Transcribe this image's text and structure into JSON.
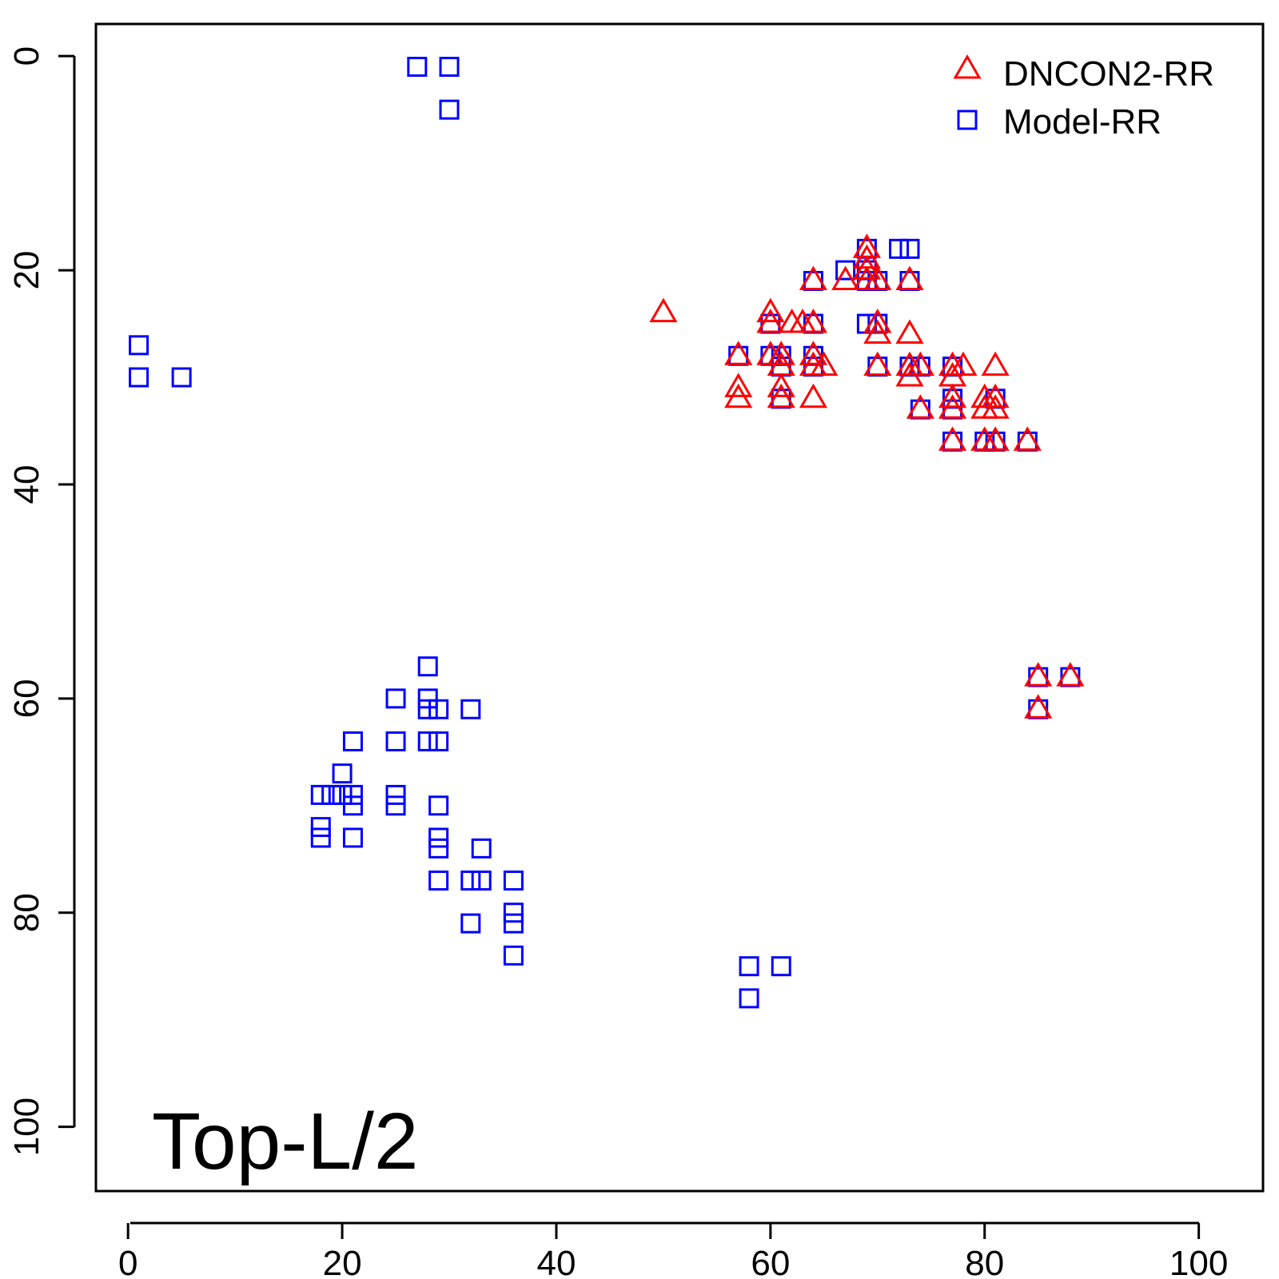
{
  "chart_data": {
    "type": "scatter",
    "annotation": "Top-L/2",
    "xlim": [
      -3,
      106
    ],
    "ylim": [
      -3,
      106
    ],
    "y_reversed": true,
    "x_ticks": [
      0,
      20,
      40,
      60,
      80,
      100
    ],
    "y_ticks": [
      0,
      20,
      40,
      60,
      80,
      100
    ],
    "legend": {
      "position": "top-right"
    },
    "series": [
      {
        "name": "DNCON2-RR",
        "marker": "triangle",
        "color": "#ff0000",
        "points": [
          [
            50,
            24
          ],
          [
            60,
            24
          ],
          [
            60,
            25
          ],
          [
            62,
            25
          ],
          [
            63,
            25
          ],
          [
            64,
            25
          ],
          [
            57,
            28
          ],
          [
            60,
            28
          ],
          [
            61,
            28
          ],
          [
            64,
            28
          ],
          [
            65,
            29
          ],
          [
            61,
            29
          ],
          [
            64,
            29
          ],
          [
            57,
            31
          ],
          [
            57,
            32
          ],
          [
            61,
            31
          ],
          [
            61,
            32
          ],
          [
            64,
            32
          ],
          [
            64,
            21
          ],
          [
            67,
            21
          ],
          [
            69,
            18
          ],
          [
            69,
            19
          ],
          [
            69,
            20
          ],
          [
            69,
            21
          ],
          [
            70,
            21
          ],
          [
            70,
            25
          ],
          [
            70,
            26
          ],
          [
            70,
            29
          ],
          [
            73,
            21
          ],
          [
            73,
            26
          ],
          [
            73,
            29
          ],
          [
            73,
            30
          ],
          [
            74,
            29
          ],
          [
            74,
            33
          ],
          [
            77,
            29
          ],
          [
            77,
            30
          ],
          [
            77,
            32
          ],
          [
            77,
            33
          ],
          [
            78,
            29
          ],
          [
            77,
            36
          ],
          [
            80,
            32
          ],
          [
            80,
            33
          ],
          [
            81,
            29
          ],
          [
            81,
            32
          ],
          [
            81,
            33
          ],
          [
            80,
            36
          ],
          [
            81,
            36
          ],
          [
            84,
            36
          ],
          [
            85,
            58
          ],
          [
            85,
            61
          ],
          [
            88,
            58
          ]
        ]
      },
      {
        "name": "Model-RR",
        "marker": "square",
        "color": "#0000ff",
        "points": [
          [
            27,
            1
          ],
          [
            30,
            1
          ],
          [
            30,
            5
          ],
          [
            1,
            27
          ],
          [
            1,
            30
          ],
          [
            5,
            30
          ],
          [
            57,
            28
          ],
          [
            60,
            25
          ],
          [
            60,
            28
          ],
          [
            61,
            28
          ],
          [
            61,
            29
          ],
          [
            61,
            32
          ],
          [
            64,
            21
          ],
          [
            64,
            25
          ],
          [
            64,
            28
          ],
          [
            64,
            29
          ],
          [
            67,
            20
          ],
          [
            69,
            18
          ],
          [
            69,
            20
          ],
          [
            69,
            21
          ],
          [
            69,
            25
          ],
          [
            70,
            21
          ],
          [
            70,
            25
          ],
          [
            70,
            29
          ],
          [
            72,
            18
          ],
          [
            73,
            18
          ],
          [
            73,
            21
          ],
          [
            73,
            29
          ],
          [
            74,
            29
          ],
          [
            74,
            33
          ],
          [
            77,
            29
          ],
          [
            77,
            32
          ],
          [
            77,
            33
          ],
          [
            77,
            36
          ],
          [
            80,
            36
          ],
          [
            81,
            32
          ],
          [
            81,
            36
          ],
          [
            84,
            36
          ],
          [
            85,
            58
          ],
          [
            85,
            61
          ],
          [
            88,
            58
          ],
          [
            28,
            57
          ],
          [
            28,
            60
          ],
          [
            28,
            61
          ],
          [
            29,
            61
          ],
          [
            32,
            61
          ],
          [
            25,
            60
          ],
          [
            25,
            64
          ],
          [
            28,
            64
          ],
          [
            29,
            64
          ],
          [
            21,
            64
          ],
          [
            20,
            67
          ],
          [
            18,
            69
          ],
          [
            19,
            69
          ],
          [
            20,
            69
          ],
          [
            21,
            69
          ],
          [
            21,
            70
          ],
          [
            25,
            69
          ],
          [
            25,
            70
          ],
          [
            29,
            70
          ],
          [
            18,
            72
          ],
          [
            18,
            73
          ],
          [
            21,
            73
          ],
          [
            29,
            73
          ],
          [
            29,
            74
          ],
          [
            33,
            74
          ],
          [
            29,
            77
          ],
          [
            32,
            77
          ],
          [
            33,
            77
          ],
          [
            36,
            77
          ],
          [
            36,
            80
          ],
          [
            36,
            81
          ],
          [
            32,
            81
          ],
          [
            36,
            84
          ],
          [
            58,
            85
          ],
          [
            61,
            85
          ],
          [
            58,
            88
          ]
        ]
      }
    ]
  }
}
